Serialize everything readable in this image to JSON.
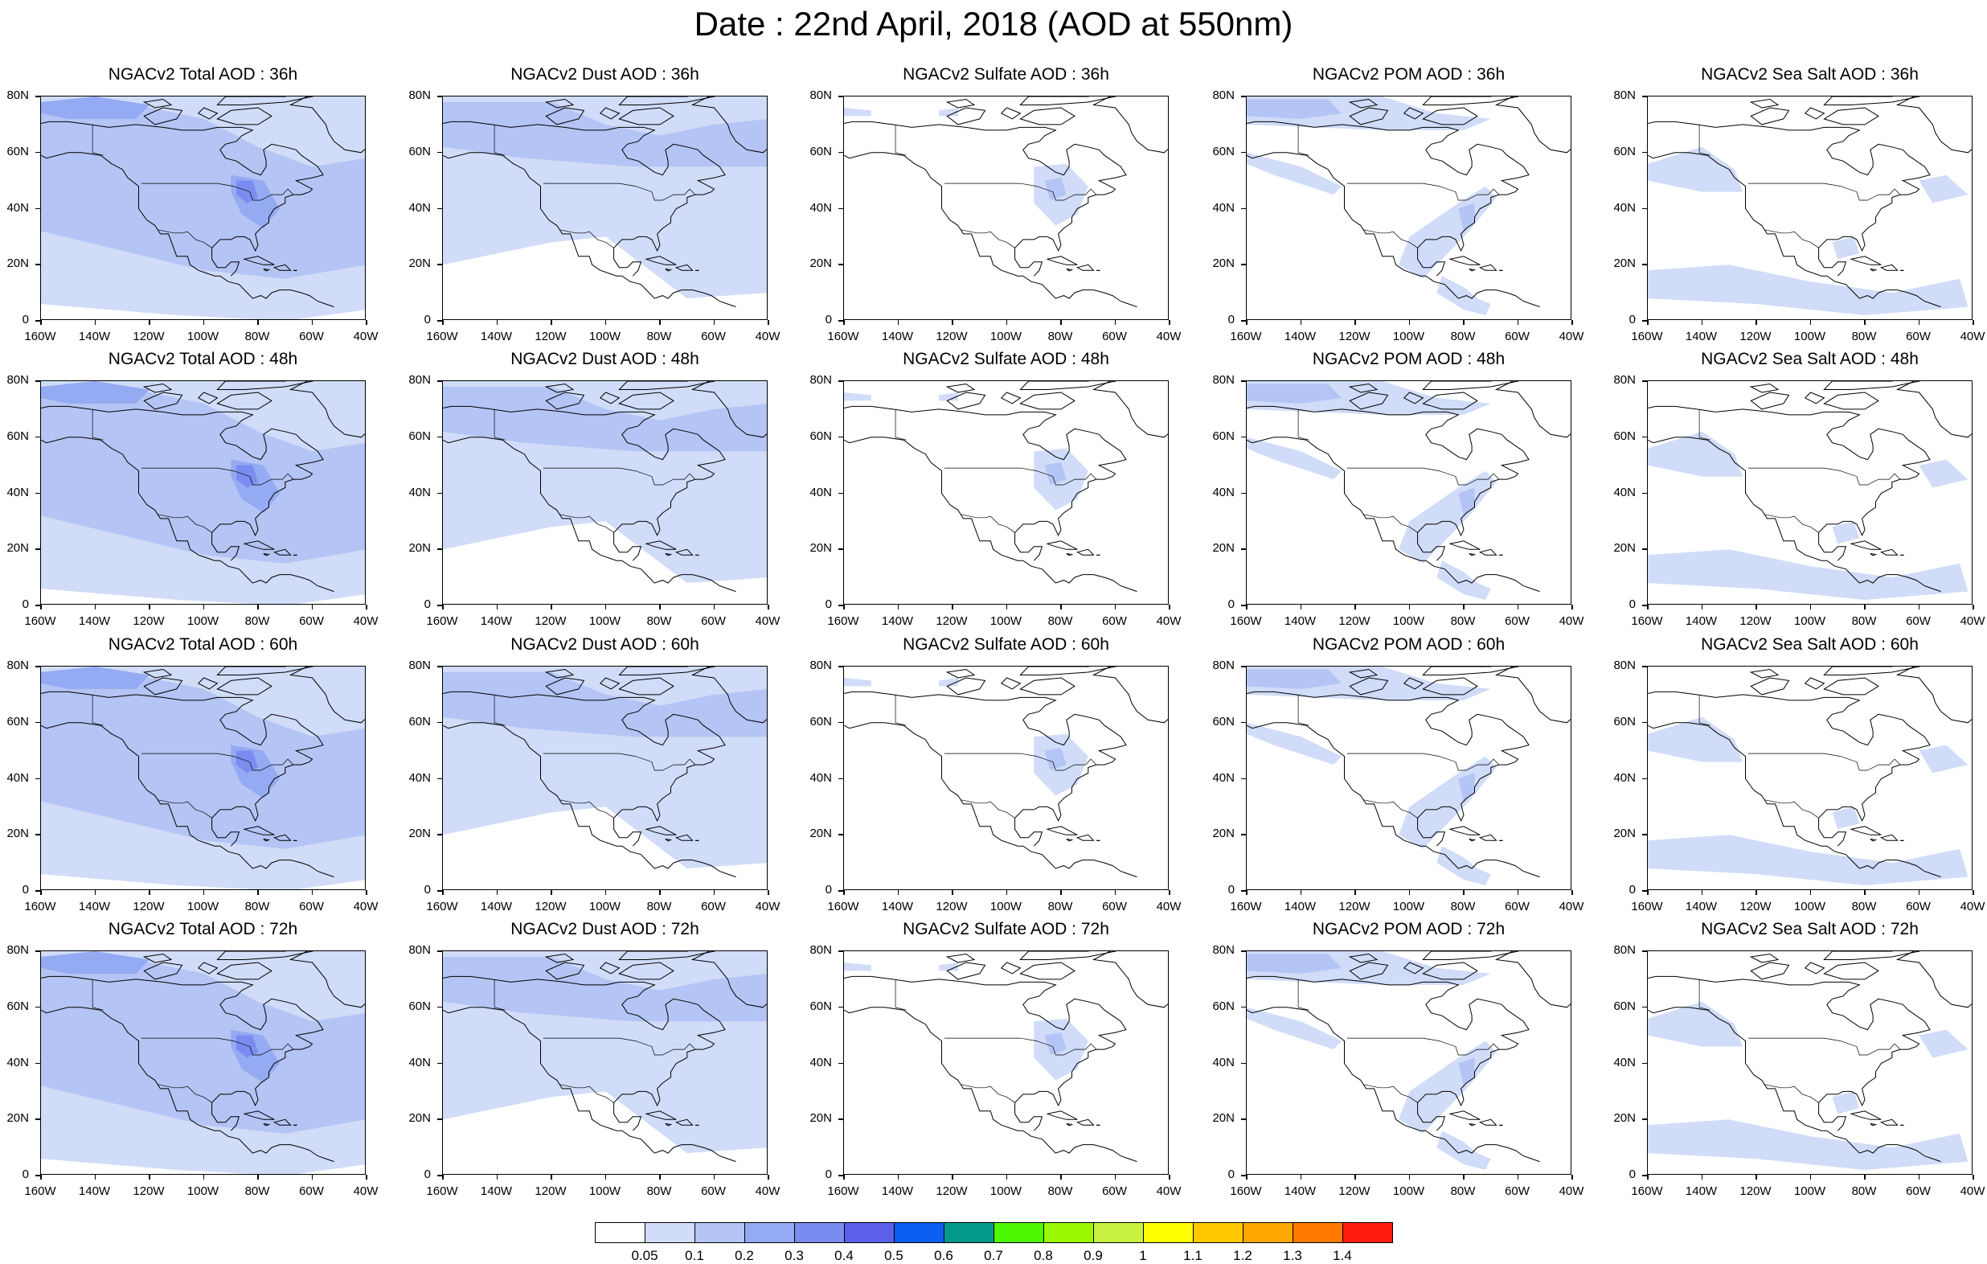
{
  "title": "Date : 22nd April, 2018 (AOD at 550nm)",
  "lat_labels": [
    "80N",
    "60N",
    "40N",
    "20N",
    "0"
  ],
  "lon_labels": [
    "160W",
    "140W",
    "120W",
    "100W",
    "80W",
    "60W",
    "40W"
  ],
  "rows": [
    {
      "lead": "36h",
      "panels": [
        {
          "title": "NGACv2 Total AOD : 36h",
          "species": "total"
        },
        {
          "title": "NGACv2 Dust AOD : 36h",
          "species": "dust"
        },
        {
          "title": "NGACv2 Sulfate AOD : 36h",
          "species": "sulfate"
        },
        {
          "title": "NGACv2 POM AOD : 36h",
          "species": "pom"
        },
        {
          "title": "NGACv2 Sea Salt AOD : 36h",
          "species": "seasalt"
        }
      ]
    },
    {
      "lead": "48h",
      "panels": [
        {
          "title": "NGACv2 Total AOD : 48h",
          "species": "total"
        },
        {
          "title": "NGACv2 Dust AOD : 48h",
          "species": "dust"
        },
        {
          "title": "NGACv2 Sulfate AOD : 48h",
          "species": "sulfate"
        },
        {
          "title": "NGACv2 POM AOD : 48h",
          "species": "pom"
        },
        {
          "title": "NGACv2 Sea Salt AOD : 48h",
          "species": "seasalt"
        }
      ]
    },
    {
      "lead": "60h",
      "panels": [
        {
          "title": "NGACv2 Total AOD : 60h",
          "species": "total"
        },
        {
          "title": "NGACv2 Dust AOD : 60h",
          "species": "dust"
        },
        {
          "title": "NGACv2 Sulfate AOD : 60h",
          "species": "sulfate"
        },
        {
          "title": "NGACv2 POM AOD : 60h",
          "species": "pom"
        },
        {
          "title": "NGACv2 Sea Salt AOD : 60h",
          "species": "seasalt"
        }
      ]
    },
    {
      "lead": "72h",
      "panels": [
        {
          "title": "NGACv2 Total AOD : 72h",
          "species": "total"
        },
        {
          "title": "NGACv2 Dust AOD : 72h",
          "species": "dust"
        },
        {
          "title": "NGACv2 Sulfate AOD : 72h",
          "species": "sulfate"
        },
        {
          "title": "NGACv2 POM AOD : 72h",
          "species": "pom"
        },
        {
          "title": "NGACv2 Sea Salt  AOD : 72h",
          "species": "seasalt"
        }
      ]
    }
  ],
  "colorbar": {
    "labels": [
      "0.05",
      "0.1",
      "0.2",
      "0.3",
      "0.4",
      "0.5",
      "0.6",
      "0.7",
      "0.8",
      "0.9",
      "1",
      "1.1",
      "1.2",
      "1.3",
      "1.4"
    ],
    "colors": [
      "#ffffff",
      "#d0dcf8",
      "#b4c4f4",
      "#94aaf2",
      "#7a8cf0",
      "#5a60ea",
      "#0a5ef2",
      "#04988c",
      "#4ef800",
      "#9cf800",
      "#c8f040",
      "#ffff00",
      "#ffc800",
      "#ffa600",
      "#ff7a00",
      "#ff1e0e"
    ]
  },
  "fill_colors": {
    "low": "#d0dcf8",
    "mid": "#b4c4f4",
    "high": "#94aaf2",
    "peak": "#7a8cf0",
    "max": "#5a60ea"
  }
}
